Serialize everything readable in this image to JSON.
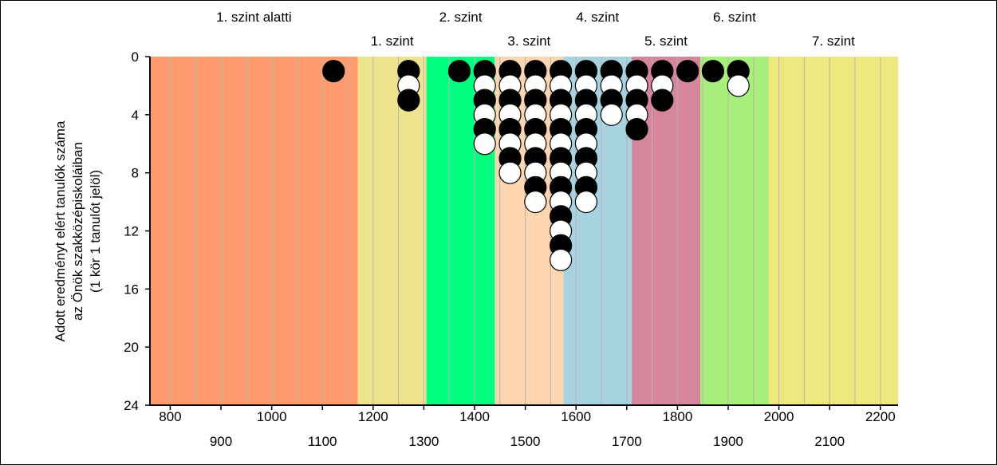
{
  "chart_data": {
    "type": "scatter",
    "marker": "stacked circles, 1 circle per student",
    "ylabel_lines": [
      "Adott eredményt elért tanulók száma",
      "az Önök szakközépiskoláiban",
      "(1 kör 1 tanulót jelöl)"
    ],
    "xlim": [
      760,
      2235
    ],
    "ylim": [
      0,
      24
    ],
    "y_inverted": true,
    "grid": "vertical lines every 50",
    "x_ticks_upper": [
      800,
      1000,
      1200,
      1400,
      1600,
      1800,
      2000,
      2200
    ],
    "x_ticks_lower": [
      900,
      1100,
      1300,
      1500,
      1700,
      1900,
      2100
    ],
    "y_ticks": [
      0,
      4,
      8,
      12,
      16,
      20,
      24
    ],
    "bands": [
      {
        "label": "1. szint alatti",
        "from": 760,
        "to": 1170,
        "color": "#ff9b6d",
        "label_row": "top"
      },
      {
        "label": "1. szint",
        "from": 1170,
        "to": 1305,
        "color": "#ede38e",
        "label_row": "bottom"
      },
      {
        "label": "2. szint",
        "from": 1305,
        "to": 1440,
        "color": "#00ff7f",
        "label_row": "top"
      },
      {
        "label": "3. szint",
        "from": 1440,
        "to": 1575,
        "color": "#fdd5ae",
        "label_row": "bottom"
      },
      {
        "label": "4. szint",
        "from": 1575,
        "to": 1710,
        "color": "#a7d3e1",
        "label_row": "top"
      },
      {
        "label": "5. szint",
        "from": 1710,
        "to": 1845,
        "color": "#d6869a",
        "label_row": "bottom"
      },
      {
        "label": "6. szint",
        "from": 1845,
        "to": 1980,
        "color": "#a8f07b",
        "label_row": "top"
      },
      {
        "label": "7. szint",
        "from": 1980,
        "to": 2235,
        "color": "#ede97f",
        "label_row": "bottom"
      }
    ],
    "series": [
      {
        "x": 1122,
        "count": 1
      },
      {
        "x": 1270,
        "count": 3
      },
      {
        "x": 1370,
        "count": 1
      },
      {
        "x": 1420,
        "count": 6
      },
      {
        "x": 1470,
        "count": 8
      },
      {
        "x": 1520,
        "count": 10
      },
      {
        "x": 1570,
        "count": 14
      },
      {
        "x": 1620,
        "count": 10
      },
      {
        "x": 1670,
        "count": 4
      },
      {
        "x": 1720,
        "count": 5
      },
      {
        "x": 1770,
        "count": 3
      },
      {
        "x": 1820,
        "count": 1
      },
      {
        "x": 1870,
        "count": 1
      },
      {
        "x": 1920,
        "count": 2
      }
    ],
    "colors": {
      "grid": "#b4b4b4",
      "marker_dark": "#000000",
      "marker_light": "#ffffff"
    }
  }
}
